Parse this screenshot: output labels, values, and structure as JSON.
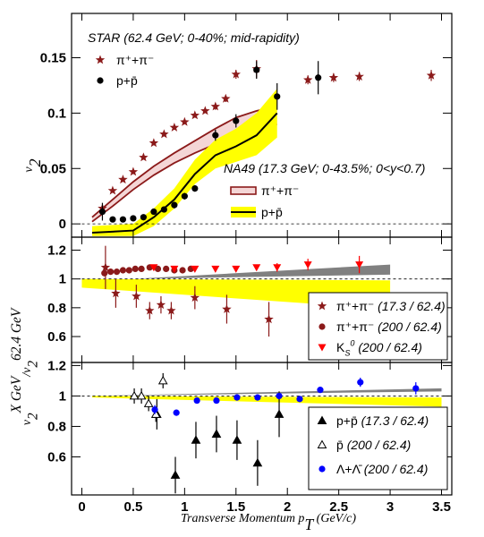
{
  "chart_data": [
    {
      "type": "scatter",
      "y_label": [
        {
          "text": "v"
        },
        {
          "text": "2",
          "shift": "sub"
        }
      ],
      "annotations": [
        "STAR (62.4 GeV; 0-40%; mid-rapidity)",
        "NA49 (17.3 GeV; 0-43.5%; 0<y<0.7)"
      ],
      "xlim": [
        -0.1,
        3.6
      ],
      "ylim": [
        -0.012,
        0.19
      ],
      "yticks": [
        0,
        0.05,
        0.1,
        0.15
      ],
      "reference_line": 0,
      "series": [
        {
          "name": "π⁺+π⁻",
          "marker": "star",
          "color": "#8b1a1a",
          "x": [
            0.2,
            0.3,
            0.4,
            0.5,
            0.6,
            0.7,
            0.8,
            0.9,
            1.0,
            1.1,
            1.2,
            1.3,
            1.4,
            1.5,
            1.7,
            2.2,
            2.45,
            2.7,
            3.4
          ],
          "values": [
            0.014,
            0.03,
            0.04,
            0.047,
            0.06,
            0.073,
            0.081,
            0.087,
            0.092,
            0.098,
            0.102,
            0.106,
            0.113,
            0.135,
            0.14,
            0.13,
            0.132,
            0.133,
            0.134
          ],
          "errors": [
            0.002,
            0.002,
            0.002,
            0.002,
            0.002,
            0.002,
            0.002,
            0.002,
            0.002,
            0.002,
            0.002,
            0.003,
            0.003,
            0.004,
            0.008,
            0.004,
            0.004,
            0.004,
            0.005
          ]
        },
        {
          "name": "p+p̄",
          "marker": "circle",
          "color": "#000000",
          "x": [
            0.2,
            0.3,
            0.4,
            0.5,
            0.6,
            0.7,
            0.8,
            0.9,
            1.0,
            1.1,
            1.3,
            1.5,
            1.7,
            1.9,
            2.3
          ],
          "values": [
            0.011,
            0.004,
            0.004,
            0.005,
            0.006,
            0.011,
            0.013,
            0.017,
            0.025,
            0.032,
            0.08,
            0.093,
            0.139,
            0.115,
            0.132
          ],
          "errors": [
            0.008,
            0.002,
            0.002,
            0.002,
            0.002,
            0.002,
            0.002,
            0.003,
            0.003,
            0.003,
            0.005,
            0.006,
            0.008,
            0.012,
            0.015
          ]
        }
      ],
      "bands": [
        {
          "name": "π⁺+π⁻",
          "fill": "#f4d6d6",
          "line_color": "#8b1a1a",
          "x": [
            0.1,
            0.3,
            0.5,
            0.7,
            0.9,
            1.1,
            1.3,
            1.5,
            1.7,
            1.9
          ],
          "upper": [
            0.006,
            0.022,
            0.038,
            0.052,
            0.064,
            0.075,
            0.086,
            0.096,
            0.102,
            0.106
          ],
          "lower": [
            0.002,
            0.016,
            0.031,
            0.044,
            0.055,
            0.064,
            0.072,
            0.081,
            0.086,
            0.09
          ]
        },
        {
          "name": "p+p̄",
          "fill": "#ffff00",
          "line_color": "#000000",
          "x": [
            0.1,
            0.5,
            0.7,
            0.9,
            1.1,
            1.3,
            1.5,
            1.7,
            1.9
          ],
          "center": [
            -0.008,
            -0.006,
            0.006,
            0.022,
            0.045,
            0.062,
            0.07,
            0.08,
            0.1
          ],
          "upper": [
            -0.002,
            0.0,
            0.014,
            0.032,
            0.058,
            0.076,
            0.086,
            0.1,
            0.122
          ],
          "lower": [
            -0.011,
            -0.011,
            -0.002,
            0.014,
            0.036,
            0.05,
            0.056,
            0.062,
            0.078
          ]
        }
      ]
    },
    {
      "type": "scatter",
      "y_label": [
        {
          "text": "v"
        },
        {
          "text": "2",
          "shift": "sub"
        },
        {
          "text": "X GeV",
          "shift": "sup"
        },
        {
          "text": "/v"
        },
        {
          "text": "2",
          "shift": "sub"
        },
        {
          "text": "62.4 GeV",
          "shift": "sup"
        }
      ],
      "xlim": [
        -0.1,
        3.6
      ],
      "ylim": [
        0.42,
        1.29
      ],
      "yticks": [
        0.6,
        0.8,
        1,
        1.2
      ],
      "reference_line": 1,
      "bands": [
        {
          "fill": "#ffff00",
          "x": [
            0,
            3
          ],
          "upper": [
            1.0,
            0.99
          ],
          "lower": [
            0.94,
            0.79
          ]
        },
        {
          "fill": "#808080",
          "x": [
            0.5,
            3
          ],
          "upper": [
            1.0,
            1.1
          ],
          "lower": [
            1.0,
            1.03
          ]
        }
      ],
      "series": [
        {
          "name": [
            {
              "text": "π⁺+π⁻ "
            },
            {
              "text": "(17.3 / 62.4)",
              "style": "italic"
            }
          ],
          "marker": "star",
          "color": "#8b1a1a",
          "x": [
            0.23,
            0.33,
            0.53,
            0.66,
            0.77,
            0.87,
            1.1,
            1.41,
            1.82
          ],
          "values": [
            1.08,
            0.9,
            0.88,
            0.78,
            0.82,
            0.78,
            0.87,
            0.79,
            0.72
          ],
          "errors": [
            0.15,
            0.1,
            0.08,
            0.06,
            0.06,
            0.06,
            0.08,
            0.1,
            0.12
          ]
        },
        {
          "name": [
            {
              "text": "π⁺+π⁻ "
            },
            {
              "text": "(200 / 62.4)",
              "style": "italic"
            }
          ],
          "marker": "circle",
          "color": "#8b1a1a",
          "x": [
            0.22,
            0.28,
            0.34,
            0.4,
            0.46,
            0.52,
            0.58,
            0.66,
            0.74,
            0.82,
            0.9,
            0.98,
            1.06
          ],
          "values": [
            1.04,
            1.05,
            1.05,
            1.06,
            1.06,
            1.07,
            1.07,
            1.08,
            1.07,
            1.07,
            1.06,
            1.06,
            1.07
          ],
          "errors": [
            0.01,
            0.01,
            0.01,
            0.01,
            0.01,
            0.01,
            0.01,
            0.01,
            0.01,
            0.01,
            0.01,
            0.01,
            0.01
          ]
        },
        {
          "name": [
            {
              "text": "K"
            },
            {
              "text": "S",
              "shift": "sub",
              "style": "italic"
            },
            {
              "text": "0",
              "shift": "sup",
              "style": "italic"
            },
            {
              "text": " (200 / 62.4)",
              "style": "italic"
            }
          ],
          "marker": "triangle-down",
          "color": "#ff0000",
          "x": [
            0.7,
            0.9,
            1.1,
            1.3,
            1.5,
            1.7,
            1.9,
            2.2,
            2.7
          ],
          "values": [
            1.08,
            1.07,
            1.07,
            1.07,
            1.07,
            1.08,
            1.08,
            1.1,
            1.1
          ],
          "errors": [
            0.02,
            0.02,
            0.02,
            0.02,
            0.02,
            0.02,
            0.03,
            0.04,
            0.06
          ]
        }
      ]
    },
    {
      "type": "scatter",
      "x_label": [
        {
          "text": "Transverse Momentum p"
        },
        {
          "text": "T",
          "shift": "sub"
        },
        {
          "text": " (GeV/c)"
        }
      ],
      "xlim": [
        -0.1,
        3.6
      ],
      "xticks": [
        0,
        0.5,
        1,
        1.5,
        2,
        2.5,
        3,
        3.5
      ],
      "ylim": [
        0.35,
        1.22
      ],
      "yticks": [
        0.6,
        0.8,
        1,
        1.2
      ],
      "reference_line": 1,
      "bands": [
        {
          "fill": "#ffff00",
          "x": [
            0.1,
            3.5
          ],
          "upper": [
            1.0,
            0.99
          ],
          "lower": [
            0.99,
            0.93
          ]
        },
        {
          "fill": "#808080",
          "x": [
            0.1,
            3.5
          ],
          "upper": [
            1.0,
            1.05
          ],
          "lower": [
            1.0,
            1.03
          ]
        }
      ],
      "series": [
        {
          "name": [
            {
              "text": "p+p̄ "
            },
            {
              "text": "(17.3 / 62.4)",
              "style": "italic"
            }
          ],
          "marker": "triangle-up",
          "color": "#000000",
          "x": [
            0.73,
            0.91,
            1.11,
            1.31,
            1.51,
            1.71,
            1.92
          ],
          "values": [
            0.88,
            0.48,
            0.71,
            0.75,
            0.71,
            0.56,
            0.88
          ],
          "errors": [
            0.1,
            0.12,
            0.12,
            0.12,
            0.13,
            0.15,
            0.15
          ]
        },
        {
          "name": [
            {
              "text": "p̄ "
            },
            {
              "text": "(200 / 62.4)",
              "style": "italic"
            }
          ],
          "marker": "open-triangle-up",
          "color": "#000000",
          "x": [
            0.51,
            0.58,
            0.65,
            0.72,
            0.79
          ],
          "values": [
            1.0,
            1.0,
            0.95,
            0.88,
            1.1
          ],
          "errors": [
            0.05,
            0.05,
            0.05,
            0.05,
            0.05
          ]
        },
        {
          "name": [
            {
              "text": "Λ+Λ̄ "
            },
            {
              "text": "(200 / 62.4)",
              "style": "italic"
            }
          ],
          "marker": "circle",
          "color": "#0000ff",
          "x": [
            0.71,
            0.92,
            1.12,
            1.31,
            1.51,
            1.71,
            1.92,
            2.12,
            2.32,
            2.71,
            3.25
          ],
          "values": [
            0.91,
            0.89,
            0.97,
            0.97,
            0.99,
            0.99,
            1.0,
            0.98,
            1.04,
            1.09,
            1.05
          ],
          "errors": [
            0.03,
            0.02,
            0.02,
            0.02,
            0.02,
            0.02,
            0.02,
            0.02,
            0.02,
            0.03,
            0.04
          ]
        }
      ]
    }
  ]
}
